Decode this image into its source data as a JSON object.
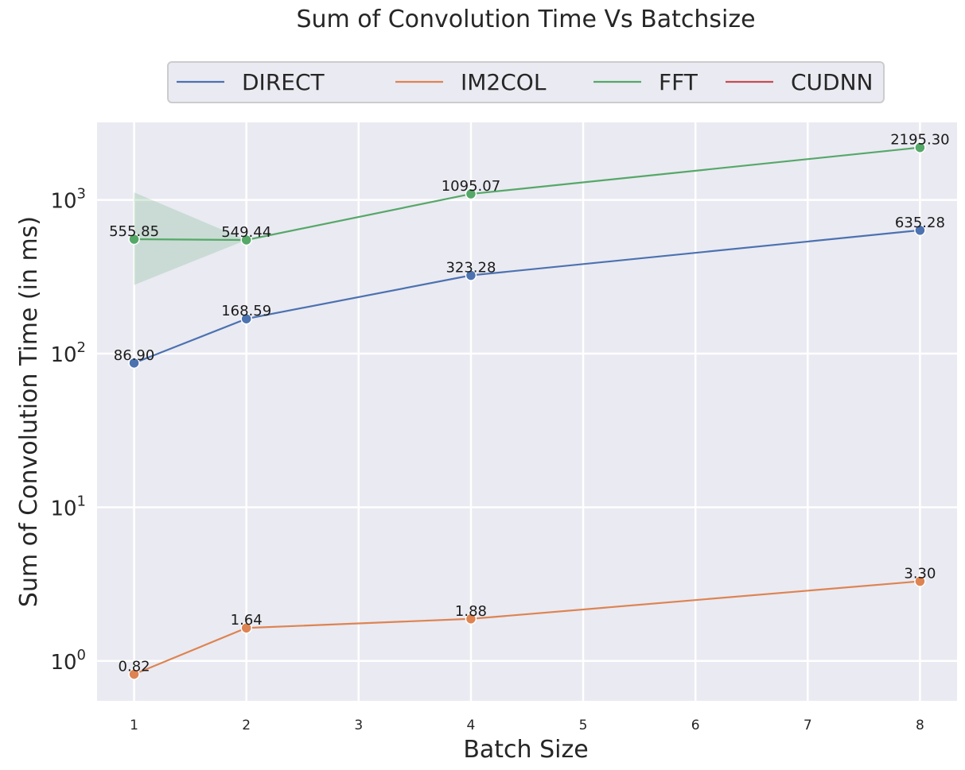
{
  "chart_data": {
    "type": "line",
    "title": "Sum of Convolution Time Vs Batchsize",
    "xlabel": "Batch Size",
    "ylabel": "Sum of Convolution Time (in ms)",
    "yscale": "log",
    "ylim": [
      0.55,
      3200
    ],
    "xlim": [
      0.67,
      8.33
    ],
    "xticks": [
      1,
      2,
      3,
      4,
      5,
      6,
      7,
      8
    ],
    "yticks": [
      {
        "value": 1,
        "base": "10",
        "exp": "0"
      },
      {
        "value": 10,
        "base": "10",
        "exp": "1"
      },
      {
        "value": 100,
        "base": "10",
        "exp": "2"
      },
      {
        "value": 1000,
        "base": "10",
        "exp": "3"
      }
    ],
    "grid": true,
    "legend_position": "top-center",
    "background": "#eaeaf2",
    "series": [
      {
        "name": "DIRECT",
        "color": "#4c72b0",
        "points": [
          {
            "x": 1,
            "y": 86.9,
            "label": "86.90"
          },
          {
            "x": 2,
            "y": 168.59,
            "label": "168.59"
          },
          {
            "x": 4,
            "y": 323.28,
            "label": "323.28"
          },
          {
            "x": 8,
            "y": 635.28,
            "label": "635.28"
          }
        ]
      },
      {
        "name": "IM2COL",
        "color": "#dd8452",
        "points": [
          {
            "x": 1,
            "y": 0.82,
            "label": "0.82"
          },
          {
            "x": 2,
            "y": 1.64,
            "label": "1.64"
          },
          {
            "x": 4,
            "y": 1.88,
            "label": "1.88"
          },
          {
            "x": 8,
            "y": 3.3,
            "label": "3.30"
          }
        ]
      },
      {
        "name": "FFT",
        "color": "#55a868",
        "points": [
          {
            "x": 1,
            "y": 555.85,
            "label": "555.85"
          },
          {
            "x": 2,
            "y": 549.44,
            "label": "549.44"
          },
          {
            "x": 4,
            "y": 1095.07,
            "label": "1095.07"
          },
          {
            "x": 8,
            "y": 2195.3,
            "label": "2195.30"
          }
        ],
        "ci_band": [
          {
            "x": 1,
            "low": 280,
            "high": 1120
          },
          {
            "x": 2,
            "low": 549.44,
            "high": 549.44
          }
        ]
      },
      {
        "name": "CUDNN",
        "color": "#c44e52",
        "points": []
      }
    ]
  }
}
